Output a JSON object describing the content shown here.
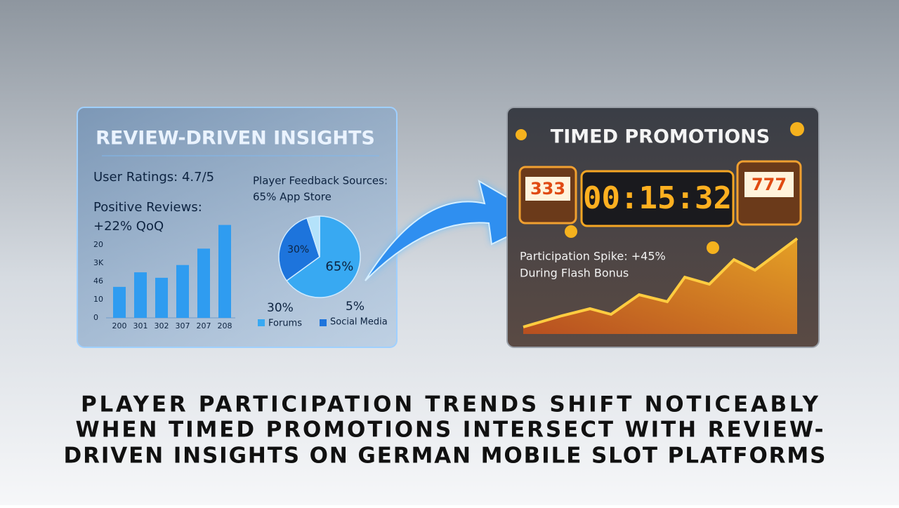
{
  "left_panel": {
    "title": "REVIEW-DRIVEN INSIGHTS",
    "user_ratings": "User Ratings: 4.7/5",
    "positive_reviews": [
      "Positive Reviews:",
      "+22% QoQ"
    ],
    "bar_chart": {
      "type": "bar",
      "categories": [
        "200",
        "301",
        "302",
        "307",
        "207",
        "208"
      ],
      "values": [
        1.7,
        2.5,
        2.2,
        2.9,
        3.8,
        5.1
      ],
      "color": "#2f9cf0",
      "ylim": [
        0,
        5.2
      ],
      "yticks": [
        0,
        {
          "value": 1,
          "label": "10"
        },
        {
          "value": 2,
          "label": "46"
        },
        {
          "value": 3,
          "label": "3K"
        },
        {
          "value": 4,
          "label": "20"
        }
      ]
    },
    "feedback_title": [
      "Player Feedback Sources:",
      "65% App Store"
    ],
    "pie": {
      "type": "pie",
      "values": [
        65,
        30,
        5
      ],
      "value_labels": [
        "65%",
        "30%",
        "5%"
      ],
      "colors": [
        "#38a9f2",
        "#1d74dc",
        "#b4e2fa"
      ]
    },
    "legend": [
      "Forums",
      "Social Media"
    ]
  },
  "right_panel": {
    "title": "TIMED PROMOTIONS",
    "timer": "00:15:32",
    "reels": [
      "333",
      "777"
    ],
    "spike": [
      "Participation Spike: +45%",
      "During Flash Bonus"
    ]
  },
  "headline": [
    "PLAYER PARTICIPATION TRENDS SHIFT NOTICEABLY",
    "WHEN TIMED PROMOTIONS INTERSECT WITH REVIEW-",
    "DRIVEN INSIGHTS ON GERMAN MOBILE SLOT PLATFORMS"
  ]
}
